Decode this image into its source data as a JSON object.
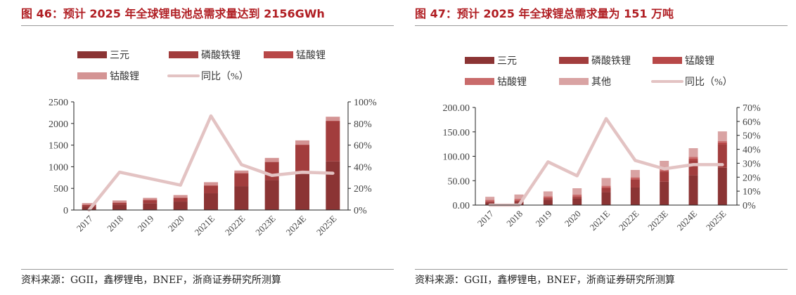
{
  "charts": [
    {
      "title": "图 46：预计 2025 年全球锂电池总需求量达到 2156GWh",
      "source": "资料来源：GGII，鑫椤锂电，BNEF，浙商证券研究所测算"
    },
    {
      "title": "图 47：预计 2025 年全球锂总需求量为 151 万吨",
      "source": "资料来源：GGII，鑫椤锂电，BNEF，浙商证券研究所测算"
    }
  ],
  "chart_data": [
    {
      "type": "bar",
      "stacked": true,
      "categories": [
        "2017",
        "2018",
        "2019",
        "2020",
        "2021E",
        "2022E",
        "2023E",
        "2024E",
        "2025E"
      ],
      "series": [
        {
          "name": "三元",
          "color": "#8B3434",
          "values": [
            80,
            124,
            157,
            194,
            389,
            551,
            691,
            830,
            1123
          ]
        },
        {
          "name": "磷酸铁锂",
          "color": "#A23D3D",
          "values": [
            35,
            42,
            69,
            86,
            174,
            292,
            416,
            670,
            929
          ]
        },
        {
          "name": "锰酸锂",
          "color": "#B84848",
          "values": [
            8,
            10,
            10,
            10,
            10,
            10,
            10,
            10,
            10
          ]
        },
        {
          "name": "钴酸锂",
          "color": "#D49494",
          "values": [
            37,
            45,
            45,
            56,
            70,
            60,
            87,
            99,
            94
          ]
        }
      ],
      "line": {
        "name": "同比（%）",
        "color": "#E3C3C3",
        "axis": "right",
        "values": [
          0,
          35,
          29,
          23,
          87,
          42,
          32,
          35,
          34
        ]
      },
      "ylim": [
        0,
        2500
      ],
      "yticks": [
        "0",
        "500",
        "1000",
        "1500",
        "2000",
        "2500"
      ],
      "y2lim": [
        0,
        100
      ],
      "y2ticks": [
        "0%",
        "20%",
        "40%",
        "60%",
        "80%",
        "100%"
      ],
      "grid": false,
      "legend": "top"
    },
    {
      "type": "bar",
      "stacked": true,
      "categories": [
        "2017",
        "2018",
        "2019",
        "2020",
        "2021E",
        "2022E",
        "2023E",
        "2024E",
        "2025E"
      ],
      "series": [
        {
          "name": "三元",
          "color": "#8B3434",
          "values": [
            5,
            5.8,
            10.6,
            13,
            26.5,
            36,
            47.7,
            61,
            76.6
          ]
        },
        {
          "name": "磷酸铁锂",
          "color": "#A23D3D",
          "values": [
            2,
            3,
            3,
            4,
            8,
            16,
            21,
            31,
            47.8
          ]
        },
        {
          "name": "锰酸锂",
          "color": "#B84848",
          "values": [
            1,
            1.5,
            1.5,
            1.5,
            2,
            2,
            2,
            3,
            4
          ]
        },
        {
          "name": "钴酸锂",
          "color": "#C96B6B",
          "values": [
            3,
            3,
            3,
            3,
            3,
            3,
            3,
            4,
            3
          ]
        },
        {
          "name": "其他",
          "color": "#D9A3A3",
          "values": [
            6,
            8.4,
            10,
            13,
            16,
            15,
            17,
            17.6,
            19.6
          ]
        }
      ],
      "line": {
        "name": "同比（%）",
        "color": "#E3C3C3",
        "axis": "right",
        "values": [
          0,
          0,
          31,
          21,
          62,
          32,
          26,
          29,
          29
        ]
      },
      "ylim": [
        0,
        200
      ],
      "yticks": [
        "0.00",
        "50.00",
        "100.00",
        "150.00",
        "200.00"
      ],
      "y2lim": [
        0,
        70
      ],
      "y2ticks": [
        "0%",
        "10%",
        "20%",
        "30%",
        "40%",
        "50%",
        "60%",
        "70%"
      ],
      "grid": false,
      "legend": "top"
    }
  ]
}
